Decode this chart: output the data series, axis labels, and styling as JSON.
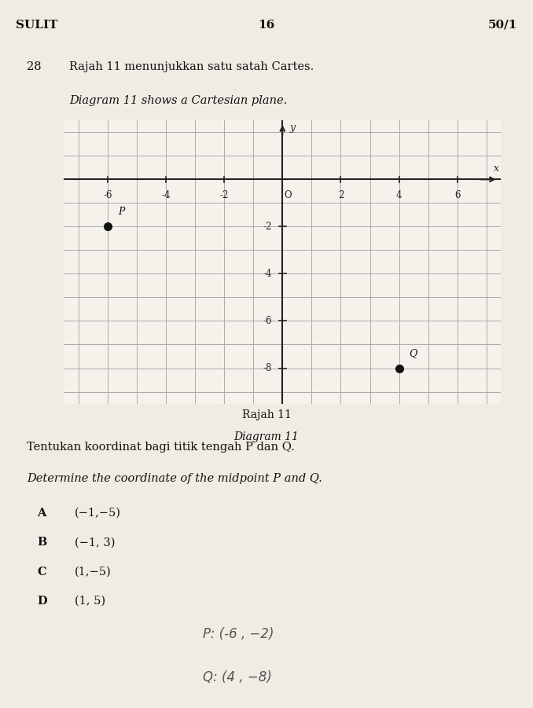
{
  "title_left": "SULIT",
  "title_center": "16",
  "title_right": "50/1",
  "question_number": "28",
  "question_malay": "Rajah 11 menunjukkan satu satah Cartes.",
  "question_english": "Diagram 11 shows a Cartesian plane.",
  "diagram_label_malay": "Rajah 11",
  "diagram_label_english": "Diagram 11",
  "question_text_malay": "Tentukan koordinat bagi titik tengah P dan Q.",
  "question_text_english": "Determine the coordinate of the midpoint P and Q.",
  "options": [
    {
      "label": "A",
      "text": "(−1,−5)"
    },
    {
      "label": "B",
      "text": "(−1, 3)"
    },
    {
      "label": "C",
      "text": "(1,−5)"
    },
    {
      "label": "D",
      "text": "(1, 5)"
    }
  ],
  "point_P": [
    -6,
    -2
  ],
  "point_Q": [
    4,
    -8
  ],
  "x_ticks": [
    -6,
    -4,
    -2,
    0,
    2,
    4,
    6
  ],
  "x_tick_labels": [
    "-6",
    "-4",
    "-2",
    "O",
    "2",
    "4",
    "6"
  ],
  "y_ticks": [
    -2,
    -4,
    -6,
    -8
  ],
  "y_tick_labels": [
    "-2",
    "-4",
    "-6",
    "-8"
  ],
  "x_range": [
    -7.5,
    7.5
  ],
  "y_range": [
    -9.5,
    2.5
  ],
  "grid_x_minor": 1,
  "grid_y_minor": 1,
  "background_color": "#f0ece4",
  "plot_background": "#f5f2ec",
  "axis_color": "#222222",
  "grid_color": "#aaaaaa",
  "point_color": "#111111",
  "text_color": "#111111",
  "handwritten_P": "P: (-6, -2)",
  "handwritten_Q": "Q: (4, -8)"
}
